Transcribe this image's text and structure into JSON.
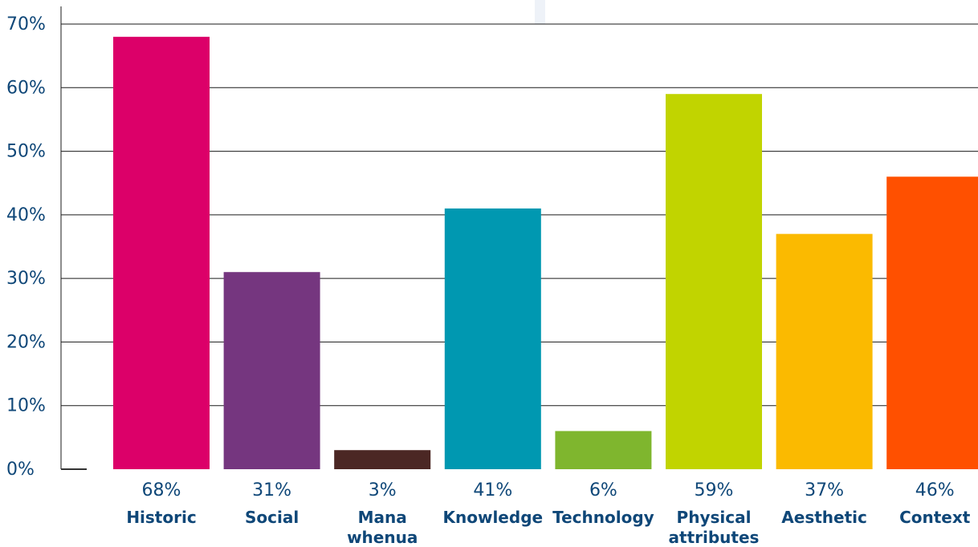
{
  "chart_data": {
    "type": "bar",
    "title": "",
    "xlabel": "",
    "ylabel": "",
    "ylim": [
      0,
      70
    ],
    "yticks": [
      "0%",
      "10%",
      "20%",
      "30%",
      "40%",
      "50%",
      "60%",
      "70%"
    ],
    "grid": true,
    "categories": [
      "Historic",
      "Social",
      "Mana whenua",
      "Knowledge",
      "Technology",
      "Physical attributes",
      "Aesthetic",
      "Context"
    ],
    "category_lines": [
      [
        "Historic"
      ],
      [
        "Social"
      ],
      [
        "Mana",
        "whenua"
      ],
      [
        "Knowledge"
      ],
      [
        "Technology"
      ],
      [
        "Physical",
        "attributes"
      ],
      [
        "Aesthetic"
      ],
      [
        "Context"
      ]
    ],
    "values": [
      68,
      31,
      3,
      41,
      6,
      59,
      37,
      46
    ],
    "value_labels": [
      "68%",
      "31%",
      "3%",
      "41%",
      "6%",
      "59%",
      "37%",
      "46%"
    ],
    "colors": [
      "#dc0069",
      "#75367f",
      "#4b2724",
      "#0098b1",
      "#7fb62e",
      "#c1d400",
      "#fbba00",
      "#ff5000"
    ],
    "text_color": "#0f4778",
    "grid_color": "#1a1a1a"
  }
}
